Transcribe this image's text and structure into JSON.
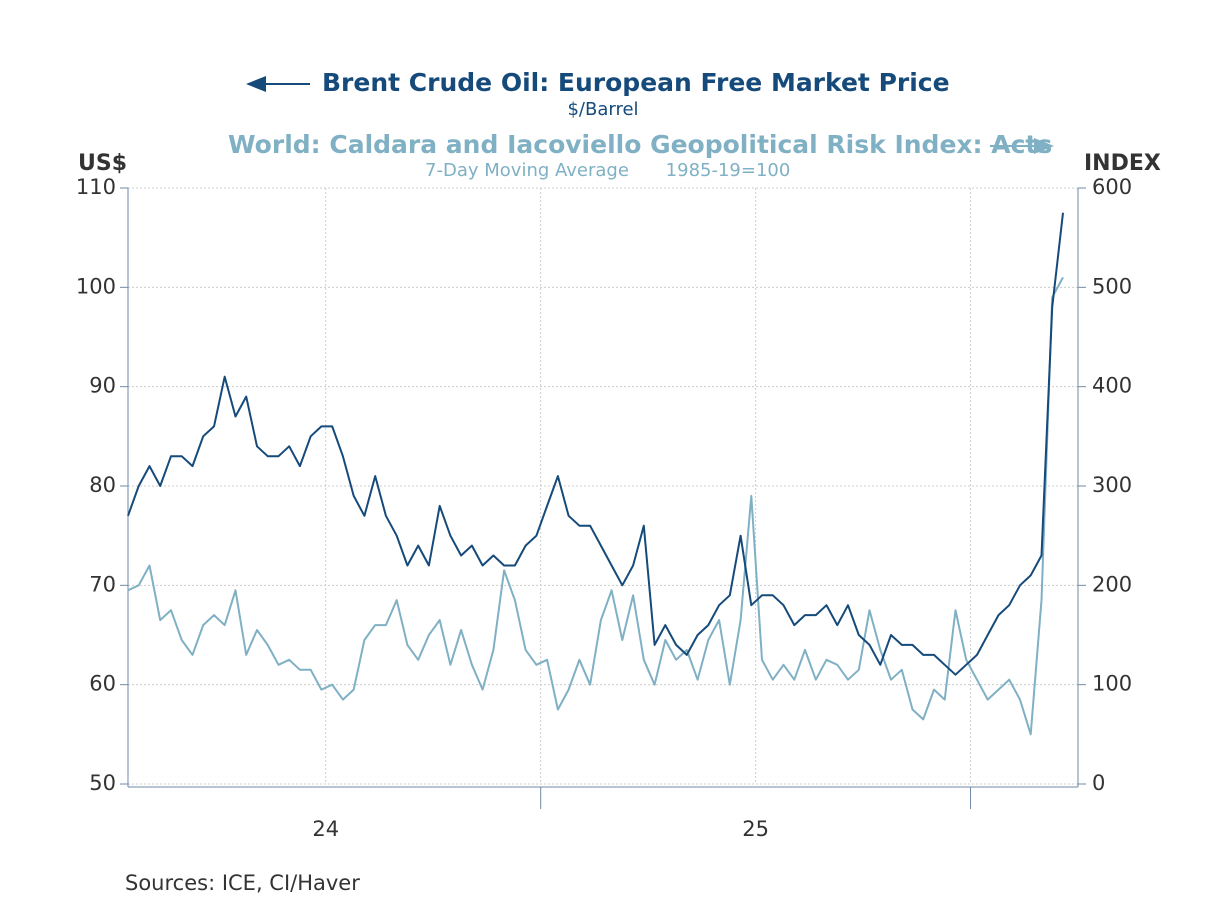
{
  "chart_data": {
    "type": "line",
    "series": [
      {
        "name": "Brent Crude Oil: European Free Market Price",
        "subtitle": "$/Barrel",
        "color": "#154a7a",
        "axis": "y",
        "values": [
          77,
          80,
          82,
          80,
          83,
          83,
          82,
          85,
          86,
          91,
          87,
          89,
          84,
          83,
          83,
          84,
          82,
          85,
          86,
          86,
          83,
          79,
          77,
          81,
          77,
          75,
          72,
          74,
          72,
          78,
          75,
          73,
          74,
          72,
          73,
          72,
          72,
          74,
          75,
          78,
          81,
          77,
          76,
          76,
          74,
          72,
          70,
          72,
          76,
          64,
          66,
          64,
          63,
          65,
          66,
          68,
          69,
          75,
          68,
          69,
          69,
          68,
          66,
          67,
          67,
          68,
          66,
          68,
          65,
          64,
          62,
          65,
          64,
          64,
          63,
          63,
          62,
          61,
          62,
          63,
          65,
          67,
          68,
          70,
          71,
          73,
          98,
          107.5
        ]
      },
      {
        "name": "World: Caldara and Iacoviello Geopolitical Risk Index: Acts",
        "subtitle": "7-Day Moving Average",
        "note": "1985-19=100",
        "color": "#7fb0c4",
        "axis": "y2",
        "values": [
          195,
          200,
          220,
          165,
          175,
          145,
          130,
          160,
          170,
          160,
          195,
          130,
          155,
          140,
          120,
          125,
          115,
          115,
          95,
          100,
          85,
          95,
          145,
          160,
          160,
          185,
          140,
          125,
          150,
          165,
          120,
          155,
          120,
          95,
          135,
          215,
          185,
          135,
          120,
          125,
          75,
          95,
          125,
          100,
          165,
          195,
          145,
          190,
          125,
          100,
          145,
          125,
          135,
          105,
          145,
          165,
          100,
          165,
          290,
          125,
          105,
          120,
          105,
          135,
          105,
          125,
          120,
          105,
          115,
          175,
          135,
          105,
          115,
          75,
          65,
          95,
          85,
          175,
          125,
          105,
          85,
          95,
          105,
          85,
          50,
          185,
          490,
          510
        ]
      }
    ],
    "x": [
      24.04,
      24.065,
      24.09,
      24.115,
      24.14,
      24.165,
      24.19,
      24.215,
      24.24,
      24.265,
      24.29,
      24.315,
      24.34,
      24.365,
      24.39,
      24.415,
      24.44,
      24.465,
      24.49,
      24.515,
      24.54,
      24.565,
      24.59,
      24.615,
      24.64,
      24.665,
      24.69,
      24.715,
      24.74,
      24.765,
      24.79,
      24.815,
      24.84,
      24.865,
      24.89,
      24.915,
      24.94,
      24.965,
      24.99,
      25.015,
      25.04,
      25.065,
      25.09,
      25.115,
      25.14,
      25.165,
      25.19,
      25.215,
      25.24,
      25.265,
      25.29,
      25.315,
      25.34,
      25.365,
      25.39,
      25.415,
      25.44,
      25.465,
      25.49,
      25.515,
      25.54,
      25.565,
      25.59,
      25.615,
      25.64,
      25.665,
      25.69,
      25.715,
      25.74,
      25.765,
      25.79,
      25.815,
      25.84,
      25.865,
      25.89,
      25.915,
      25.94,
      25.965,
      25.99,
      26.015,
      26.04,
      26.065,
      26.09,
      26.115,
      26.14,
      26.165,
      26.19,
      26.215
    ],
    "xlim": [
      24.04,
      26.25
    ],
    "xticks": [
      {
        "value": 24.5,
        "label": "24"
      },
      {
        "value": 25.5,
        "label": "25"
      }
    ],
    "xgrid": [
      24.5,
      25,
      25.5,
      26
    ],
    "xmajor": [
      25,
      26
    ],
    "ylabel": "US$",
    "ylim": [
      50,
      110
    ],
    "yticks": [
      50,
      60,
      70,
      80,
      90,
      100,
      110
    ],
    "y2label": "INDEX",
    "y2lim": [
      0,
      600
    ],
    "y2ticks": [
      0,
      100,
      200,
      300,
      400,
      500,
      600
    ],
    "grid": true,
    "source": "Sources:  ICE, CI/Haver"
  }
}
